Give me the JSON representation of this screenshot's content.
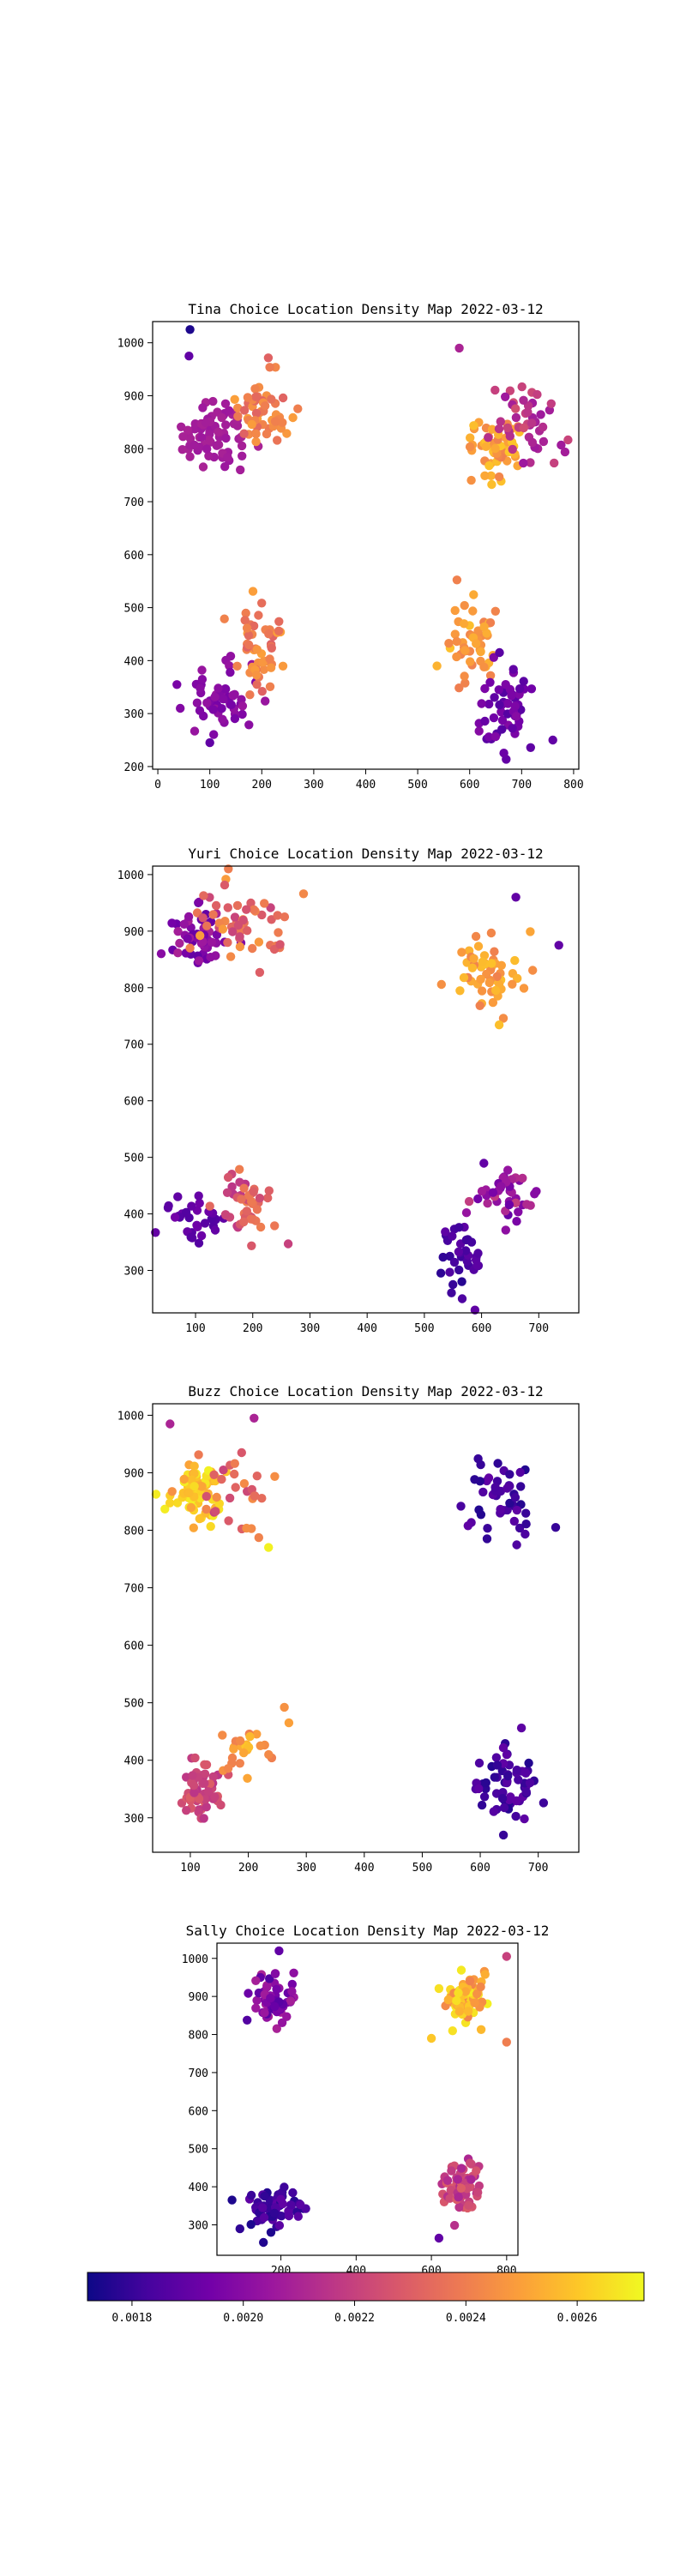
{
  "chart_data": [
    {
      "type": "scatter",
      "title": "Tina Choice Location Density Map 2022-03-12",
      "xlim": [
        -10,
        810
      ],
      "ylim": [
        195,
        1040
      ],
      "xticks": [
        0,
        100,
        200,
        300,
        400,
        500,
        600,
        700,
        800
      ],
      "yticks": [
        200,
        300,
        400,
        500,
        600,
        700,
        800,
        900,
        1000
      ],
      "clusters": [
        {
          "cx": 110,
          "cy": 830,
          "sx": 30,
          "sy": 35,
          "n": 70,
          "dmin": 0.00205,
          "dmax": 0.0021
        },
        {
          "cx": 200,
          "cy": 870,
          "sx": 30,
          "sy": 35,
          "n": 55,
          "dmin": 0.0023,
          "dmax": 0.0025
        },
        {
          "cx": 650,
          "cy": 810,
          "sx": 30,
          "sy": 30,
          "n": 55,
          "dmin": 0.0024,
          "dmax": 0.0026
        },
        {
          "cx": 710,
          "cy": 850,
          "sx": 30,
          "sy": 35,
          "n": 45,
          "dmin": 0.00205,
          "dmax": 0.00225
        },
        {
          "cx": 130,
          "cy": 330,
          "sx": 30,
          "sy": 30,
          "n": 55,
          "dmin": 0.00195,
          "dmax": 0.00205
        },
        {
          "cx": 200,
          "cy": 420,
          "sx": 25,
          "sy": 40,
          "n": 50,
          "dmin": 0.0023,
          "dmax": 0.0025
        },
        {
          "cx": 600,
          "cy": 430,
          "sx": 25,
          "sy": 35,
          "n": 50,
          "dmin": 0.0024,
          "dmax": 0.0026
        },
        {
          "cx": 670,
          "cy": 310,
          "sx": 30,
          "sy": 35,
          "n": 55,
          "dmin": 0.00185,
          "dmax": 0.002
        }
      ],
      "outliers": [
        {
          "x": 62,
          "y": 1025,
          "d": 0.00175
        },
        {
          "x": 60,
          "y": 975,
          "d": 0.0019
        },
        {
          "x": 580,
          "y": 990,
          "d": 0.0021
        },
        {
          "x": 760,
          "y": 250,
          "d": 0.0019
        },
        {
          "x": 100,
          "y": 245,
          "d": 0.0019
        }
      ]
    },
    {
      "type": "scatter",
      "title": "Yuri Choice Location Density Map 2022-03-12",
      "xlim": [
        25,
        770
      ],
      "ylim": [
        225,
        1015
      ],
      "xticks": [
        100,
        200,
        300,
        400,
        500,
        600,
        700
      ],
      "yticks": [
        300,
        400,
        500,
        600,
        700,
        800,
        900,
        1000
      ],
      "clusters": [
        {
          "cx": 100,
          "cy": 890,
          "sx": 25,
          "sy": 30,
          "n": 50,
          "dmin": 0.0019,
          "dmax": 0.0021
        },
        {
          "cx": 180,
          "cy": 910,
          "sx": 35,
          "sy": 35,
          "n": 55,
          "dmin": 0.0022,
          "dmax": 0.0025
        },
        {
          "cx": 610,
          "cy": 830,
          "sx": 30,
          "sy": 35,
          "n": 55,
          "dmin": 0.0024,
          "dmax": 0.0026
        },
        {
          "cx": 100,
          "cy": 390,
          "sx": 30,
          "sy": 20,
          "n": 30,
          "dmin": 0.00185,
          "dmax": 0.00195
        },
        {
          "cx": 180,
          "cy": 420,
          "sx": 25,
          "sy": 30,
          "n": 45,
          "dmin": 0.00215,
          "dmax": 0.0024
        },
        {
          "cx": 570,
          "cy": 320,
          "sx": 20,
          "sy": 35,
          "n": 35,
          "dmin": 0.00175,
          "dmax": 0.0019
        },
        {
          "cx": 640,
          "cy": 440,
          "sx": 30,
          "sy": 30,
          "n": 40,
          "dmin": 0.0019,
          "dmax": 0.0022
        }
      ],
      "outliers": [
        {
          "x": 40,
          "y": 860,
          "d": 0.002
        },
        {
          "x": 735,
          "y": 875,
          "d": 0.0019
        },
        {
          "x": 660,
          "y": 960,
          "d": 0.0019
        },
        {
          "x": 262,
          "y": 347,
          "d": 0.0022
        },
        {
          "x": 550,
          "y": 275,
          "d": 0.0018
        }
      ]
    },
    {
      "type": "scatter",
      "title": "Buzz Choice Location Density Map 2022-03-12",
      "xlim": [
        35,
        770
      ],
      "ylim": [
        240,
        1020
      ],
      "xticks": [
        100,
        200,
        300,
        400,
        500,
        600,
        700
      ],
      "yticks": [
        300,
        400,
        500,
        600,
        700,
        800,
        900,
        1000
      ],
      "clusters": [
        {
          "cx": 110,
          "cy": 870,
          "sx": 25,
          "sy": 25,
          "n": 75,
          "dmin": 0.0025,
          "dmax": 0.0027
        },
        {
          "cx": 180,
          "cy": 860,
          "sx": 40,
          "sy": 45,
          "n": 30,
          "dmin": 0.0022,
          "dmax": 0.0025
        },
        {
          "cx": 630,
          "cy": 860,
          "sx": 30,
          "sy": 35,
          "n": 45,
          "dmin": 0.00175,
          "dmax": 0.0019
        },
        {
          "cx": 120,
          "cy": 350,
          "sx": 20,
          "sy": 25,
          "n": 60,
          "dmin": 0.00215,
          "dmax": 0.0023
        },
        {
          "cx": 200,
          "cy": 420,
          "sx": 25,
          "sy": 30,
          "n": 25,
          "dmin": 0.0024,
          "dmax": 0.0026
        },
        {
          "cx": 650,
          "cy": 360,
          "sx": 25,
          "sy": 30,
          "n": 60,
          "dmin": 0.00175,
          "dmax": 0.0019
        }
      ],
      "outliers": [
        {
          "x": 65,
          "y": 985,
          "d": 0.0021
        },
        {
          "x": 210,
          "y": 995,
          "d": 0.0021
        },
        {
          "x": 235,
          "y": 770,
          "d": 0.0027
        },
        {
          "x": 730,
          "y": 805,
          "d": 0.0018
        },
        {
          "x": 270,
          "y": 465,
          "d": 0.0025
        },
        {
          "x": 640,
          "y": 270,
          "d": 0.0018
        }
      ]
    },
    {
      "type": "scatter",
      "title": "Sally Choice Location Density Map 2022-03-12",
      "xlim": [
        30,
        830
      ],
      "ylim": [
        220,
        1040
      ],
      "xticks": [
        200,
        400,
        600,
        800
      ],
      "yticks": [
        300,
        400,
        500,
        600,
        700,
        800,
        900,
        1000
      ],
      "clusters": [
        {
          "cx": 180,
          "cy": 890,
          "sx": 30,
          "sy": 30,
          "n": 65,
          "dmin": 0.00185,
          "dmax": 0.0021
        },
        {
          "cx": 690,
          "cy": 890,
          "sx": 30,
          "sy": 30,
          "n": 75,
          "dmin": 0.0024,
          "dmax": 0.0027
        },
        {
          "cx": 180,
          "cy": 345,
          "sx": 30,
          "sy": 30,
          "n": 65,
          "dmin": 0.00175,
          "dmax": 0.0019
        },
        {
          "cx": 680,
          "cy": 400,
          "sx": 30,
          "sy": 35,
          "n": 65,
          "dmin": 0.0021,
          "dmax": 0.0023
        }
      ],
      "outliers": [
        {
          "x": 70,
          "y": 365,
          "d": 0.00175
        },
        {
          "x": 195,
          "y": 1020,
          "d": 0.0019
        },
        {
          "x": 800,
          "y": 1005,
          "d": 0.0022
        },
        {
          "x": 600,
          "y": 790,
          "d": 0.0026
        },
        {
          "x": 620,
          "y": 265,
          "d": 0.0019
        },
        {
          "x": 800,
          "y": 780,
          "d": 0.0024
        }
      ]
    }
  ],
  "colorbar": {
    "colormap": "plasma",
    "vmin": 0.00172,
    "vmax": 0.00272,
    "ticks": [
      0.0018,
      0.002,
      0.0022,
      0.0024,
      0.0026
    ],
    "tick_labels": [
      "0.0018",
      "0.0020",
      "0.0022",
      "0.0024",
      "0.0026"
    ]
  }
}
